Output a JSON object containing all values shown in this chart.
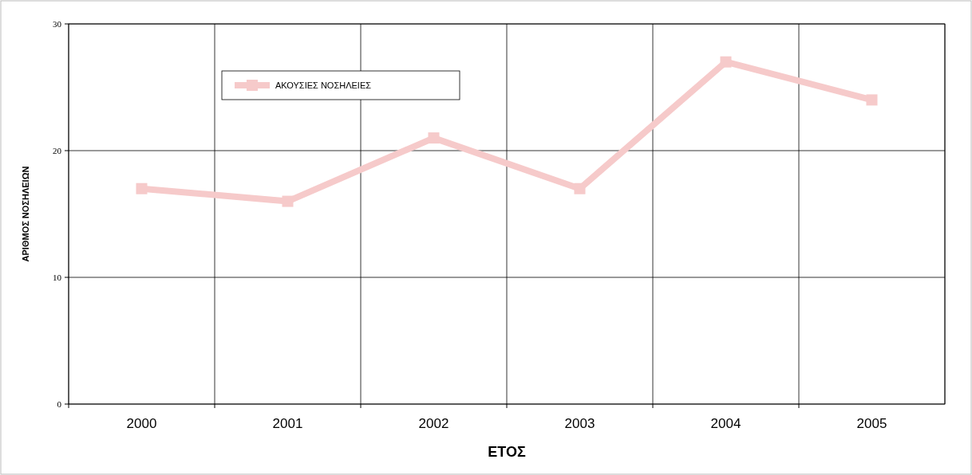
{
  "chart_data": {
    "type": "line",
    "xlabel": "ΕΤΟΣ",
    "ylabel": "ΑΡΙΘΜΟΣ ΝΟΣΗΛΕΙΩΝ",
    "categories": [
      "2000",
      "2001",
      "2002",
      "2003",
      "2004",
      "2005"
    ],
    "series": [
      {
        "name": "ΑΚΟΥΣΙΕΣ ΝΟΣΗΛΕΙΕΣ",
        "color": "#f6caca",
        "values": [
          17,
          16,
          21,
          17,
          27,
          24
        ]
      }
    ],
    "ylim": [
      0,
      30
    ],
    "yticks": [
      0,
      10,
      20,
      30
    ],
    "grid": true,
    "legend": "top left",
    "marker": "square",
    "line_style": "solid"
  }
}
